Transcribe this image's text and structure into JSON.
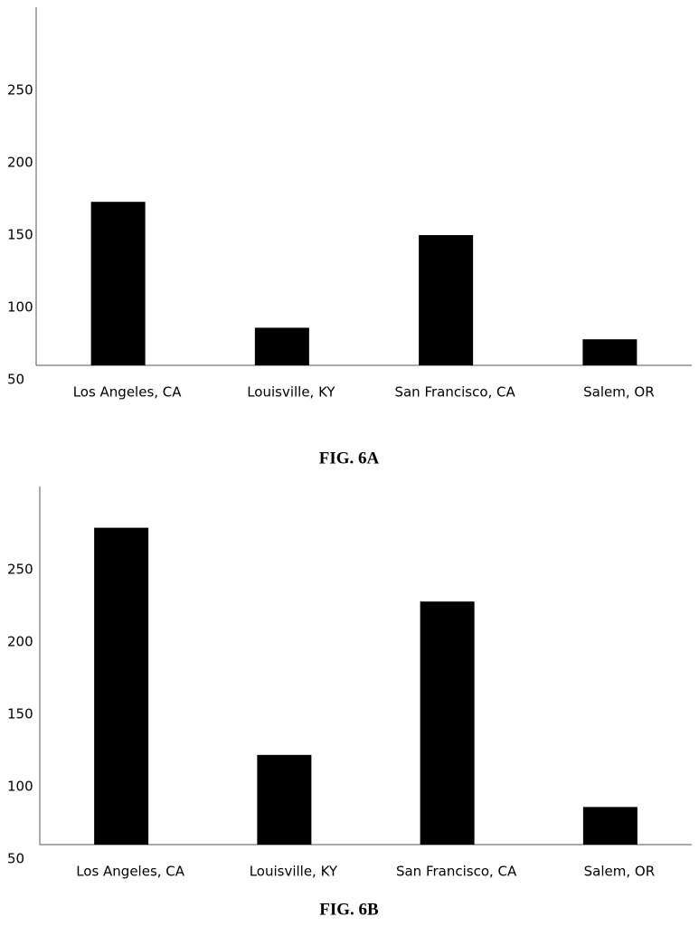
{
  "chart_data": [
    {
      "type": "bar",
      "title": "FIG. 6A",
      "categories": [
        "Los Angeles, CA",
        "Louisville, KY",
        "San Francisco, CA",
        "Salem, OR"
      ],
      "values": [
        173,
        86,
        150,
        78
      ],
      "color": "#000000",
      "ylim": [
        50,
        300
      ],
      "yticks": [
        50,
        100,
        150,
        200,
        250
      ],
      "grid": false
    },
    {
      "type": "bar",
      "title": "FIG. 6B",
      "categories": [
        "Los Angeles, CA",
        "Louisville, KY",
        "San Francisco, CA",
        "Salem, OR"
      ],
      "values": [
        279,
        122,
        228,
        86
      ],
      "color": "#000000",
      "ylim": [
        50,
        300
      ],
      "yticks": [
        50,
        100,
        150,
        200,
        250
      ],
      "grid": false
    }
  ]
}
